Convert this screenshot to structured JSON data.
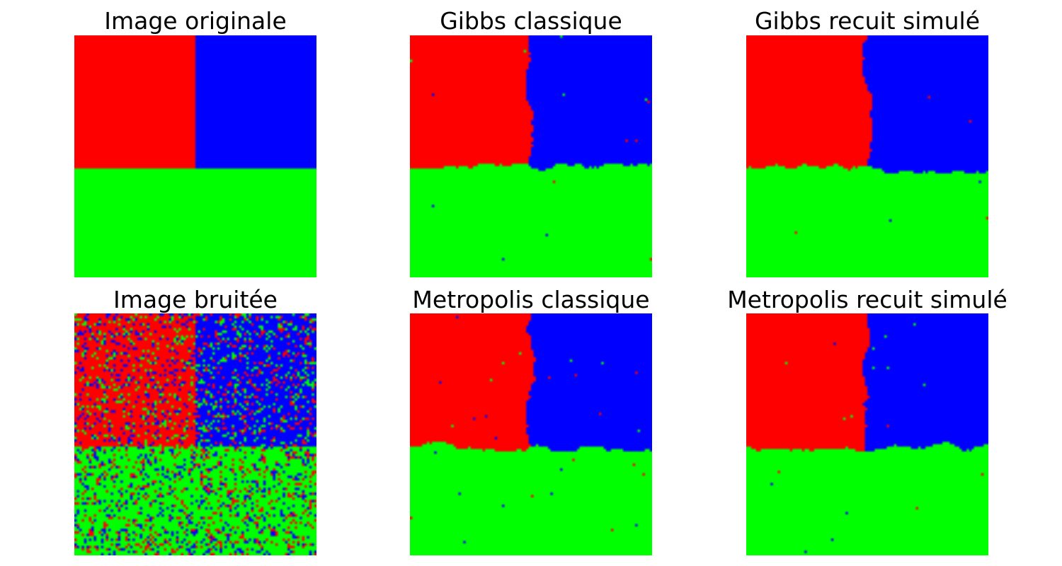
{
  "colors": {
    "red": "#ff0000",
    "green": "#00ff00",
    "blue": "#0000ff",
    "background": "#ffffff"
  },
  "panels": [
    {
      "title": "Image originale",
      "kind": "original"
    },
    {
      "title": "Gibbs classique",
      "kind": "restored_gibbs"
    },
    {
      "title": "Gibbs recuit simulé",
      "kind": "restored_gibbs_annealing"
    },
    {
      "title": "Image bruitée",
      "kind": "noisy"
    },
    {
      "title": "Metropolis classique",
      "kind": "restored_metropolis"
    },
    {
      "title": "Metropolis recuit simulé",
      "kind": "restored_metropolis_annealing"
    }
  ]
}
